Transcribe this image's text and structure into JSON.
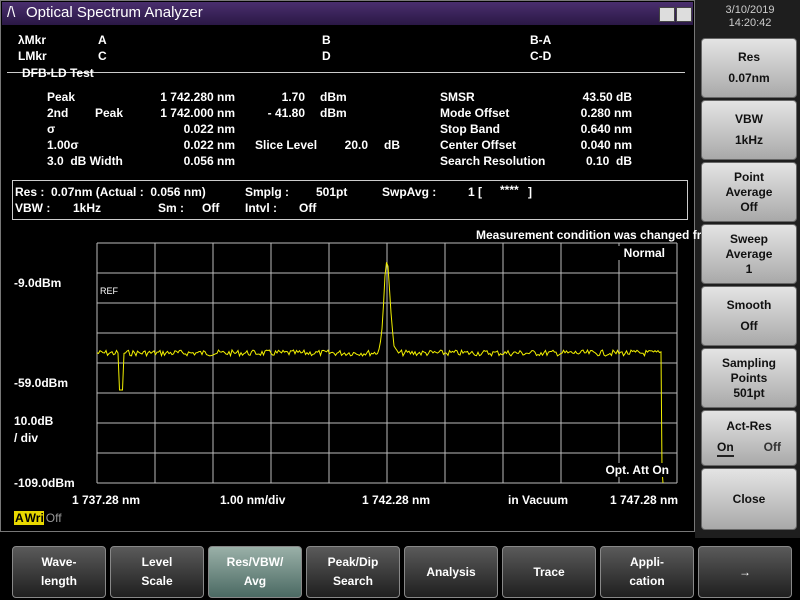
{
  "title": "Optical Spectrum Analyzer",
  "datetime": {
    "date": "3/10/2019",
    "time": "14:20:42"
  },
  "markers": [
    [
      "λMkr",
      "A",
      "B",
      "B-A"
    ],
    [
      "LMkr",
      "C",
      "D",
      "C-D"
    ]
  ],
  "test": {
    "name": "DFB-LD Test",
    "peak": {
      "label": "Peak",
      "wavelength": "1 742.280 nm",
      "level": "1.70",
      "unit": "dBm"
    },
    "second_peak": {
      "label": "2nd",
      "sublabel": "Peak",
      "wavelength": "1 742.000 nm",
      "level": "- 41.80",
      "unit": "dBm"
    },
    "sigma": {
      "label": "σ",
      "value": "0.022 nm"
    },
    "sigma_scaled": {
      "label": "1.00σ",
      "value": "0.022 nm"
    },
    "slice_level": {
      "label": "Slice Level",
      "value": "20.0",
      "unit": "dB"
    },
    "width": {
      "label": "3.0  dB Width",
      "value": "0.056 nm"
    },
    "right": [
      [
        "SMSR",
        "43.50 dB"
      ],
      [
        "Mode Offset",
        "0.280 nm"
      ],
      [
        "Stop Band",
        "0.640 nm"
      ],
      [
        "Center Offset",
        "0.040 nm"
      ],
      [
        "Search Resolution",
        "0.10  dB"
      ]
    ]
  },
  "conditions": {
    "res": "Res :  0.07nm (Actual :  0.056 nm)",
    "smplg_label": "Smplg :",
    "smplg": "501pt",
    "swpavg_label": "SwpAvg :",
    "swpavg": "1 [",
    "swpavg_stars": "****",
    "swpavg_end": "]",
    "vbw_label": "VBW :",
    "vbw": "1kHz",
    "sm_label": "Sm :",
    "sm": "Off",
    "intvl_label": "Intvl :",
    "intvl": "Off"
  },
  "graph": {
    "notice": "Measurement condition was changed from active trace.",
    "mode": "Normal",
    "ref": "REF",
    "levels": [
      "-9.0dBm",
      "-59.0dBm",
      "-109.0dBm"
    ],
    "scale": [
      "10.0dB",
      "/ div"
    ],
    "x_labels": [
      "1 737.28 nm",
      "1.00 nm/div",
      "1 742.28 nm",
      "in Vacuum",
      "1 747.28 nm"
    ],
    "attenuator": "Opt. Att On",
    "trace_status": {
      "trace": "A",
      "mode": "Wri",
      "state": "Off"
    }
  },
  "softkeys": [
    {
      "lines": [
        "Res",
        "0.07nm"
      ]
    },
    {
      "lines": [
        "VBW",
        "1kHz"
      ]
    },
    {
      "lines": [
        "Point",
        "Average",
        "Off"
      ]
    },
    {
      "lines": [
        "Sweep",
        "Average",
        "1"
      ]
    },
    {
      "lines": [
        "Smooth",
        "Off"
      ]
    },
    {
      "lines": [
        "Sampling",
        "Points",
        "501pt"
      ]
    },
    {
      "lines": [
        "Act-Res"
      ],
      "options": [
        "On",
        "Off"
      ]
    },
    {
      "lines": [
        "Close"
      ]
    }
  ],
  "function_keys": [
    [
      "Wave-",
      "length"
    ],
    [
      "Level",
      "Scale"
    ],
    [
      "Res/VBW/",
      "Avg"
    ],
    [
      "Peak/Dip",
      "Search"
    ],
    [
      "Analysis"
    ],
    [
      "Trace"
    ],
    [
      "Appli-",
      "cation"
    ],
    [
      "→"
    ]
  ]
}
